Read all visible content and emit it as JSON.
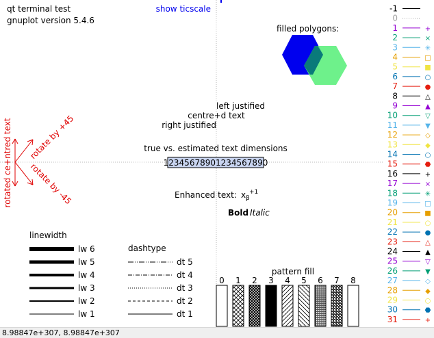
{
  "header": {
    "line1": "qt  terminal test",
    "line2": "gnuplot version 5.4.6",
    "show_ticscale": "show ticscale"
  },
  "filled_polygons": {
    "label": "filled polygons:",
    "colors": [
      "#0000ee",
      "#55ee77"
    ]
  },
  "justify": {
    "left": "left justified",
    "centre": "centre+d text",
    "right": "right justified"
  },
  "estimate": {
    "label": "true vs. estimated text dimensions",
    "box_text": "12345678901234567890"
  },
  "rotate": {
    "vertical": "rotated ce+ntred text",
    "plus45": "rotate by +45",
    "minus45": "rotate by -45",
    "color": "#e00000"
  },
  "enhanced": {
    "label": "Enhanced text:",
    "base": "x",
    "sub": "β",
    "sup": "+1",
    "bold": "Bold",
    "italic": "Italic"
  },
  "linewidth": {
    "title": "linewidth",
    "items": [
      "lw 6",
      "lw 5",
      "lw 4",
      "lw 3",
      "lw 2",
      "lw 1"
    ]
  },
  "dashtype": {
    "title": "dashtype",
    "items": [
      "dt 5",
      "dt 4",
      "dt 3",
      "dt 2",
      "dt 1"
    ]
  },
  "pattern_fill": {
    "title": "pattern fill",
    "labels": [
      "0",
      "1",
      "2",
      "3",
      "4",
      "5",
      "6",
      "7",
      "8"
    ]
  },
  "linetypes": [
    {
      "label": "-1",
      "color": "#000000",
      "symbol": ""
    },
    {
      "label": "0",
      "color": "#a0a0a0",
      "symbol": ""
    },
    {
      "label": "1",
      "color": "#9400d3",
      "symbol": "+"
    },
    {
      "label": "2",
      "color": "#009e73",
      "symbol": "×"
    },
    {
      "label": "3",
      "color": "#56b4e9",
      "symbol": "✳"
    },
    {
      "label": "4",
      "color": "#e69f00",
      "symbol": "□"
    },
    {
      "label": "5",
      "color": "#f0e442",
      "symbol": "■"
    },
    {
      "label": "6",
      "color": "#0072b2",
      "symbol": "○"
    },
    {
      "label": "7",
      "color": "#e51e10",
      "symbol": "●"
    },
    {
      "label": "8",
      "color": "#000000",
      "symbol": "△"
    },
    {
      "label": "9",
      "color": "#9400d3",
      "symbol": "▲"
    },
    {
      "label": "10",
      "color": "#009e73",
      "symbol": "▽"
    },
    {
      "label": "11",
      "color": "#56b4e9",
      "symbol": "▼"
    },
    {
      "label": "12",
      "color": "#e69f00",
      "symbol": "◇"
    },
    {
      "label": "13",
      "color": "#f0e442",
      "symbol": "◆"
    },
    {
      "label": "14",
      "color": "#0072b2",
      "symbol": "○"
    },
    {
      "label": "15",
      "color": "#e51e10",
      "symbol": "⬣"
    },
    {
      "label": "16",
      "color": "#000000",
      "symbol": "+"
    },
    {
      "label": "17",
      "color": "#9400d3",
      "symbol": "×"
    },
    {
      "label": "18",
      "color": "#009e73",
      "symbol": "✳"
    },
    {
      "label": "19",
      "color": "#56b4e9",
      "symbol": "□"
    },
    {
      "label": "20",
      "color": "#e69f00",
      "symbol": "■"
    },
    {
      "label": "21",
      "color": "#f0e442",
      "symbol": "○"
    },
    {
      "label": "22",
      "color": "#0072b2",
      "symbol": "●"
    },
    {
      "label": "23",
      "color": "#e51e10",
      "symbol": "△"
    },
    {
      "label": "24",
      "color": "#000000",
      "symbol": "▲"
    },
    {
      "label": "25",
      "color": "#9400d3",
      "symbol": "▽"
    },
    {
      "label": "26",
      "color": "#009e73",
      "symbol": "▼"
    },
    {
      "label": "27",
      "color": "#56b4e9",
      "symbol": "◇"
    },
    {
      "label": "28",
      "color": "#e69f00",
      "symbol": "◆"
    },
    {
      "label": "29",
      "color": "#f0e442",
      "symbol": "○"
    },
    {
      "label": "30",
      "color": "#0072b2",
      "symbol": "⬣"
    },
    {
      "label": "31",
      "color": "#e51e10",
      "symbol": "+"
    }
  ],
  "statusbar": {
    "coords": "8.98847e+307,  8.98847e+307"
  }
}
